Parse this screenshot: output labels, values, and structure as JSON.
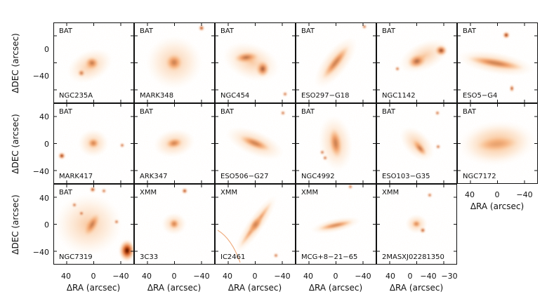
{
  "figure": {
    "ylabel": "ΔDEC (arcsec)",
    "xlabel": "ΔRA (arcsec)",
    "background": "#ffffff",
    "colormap": [
      "#ffffff",
      "#fde8d2",
      "#f7b27a",
      "#e2641e",
      "#8a2300",
      "#3a0b00"
    ]
  },
  "y_ticks": [
    "40",
    "0",
    "−40"
  ],
  "x_ticks": [
    "40",
    "0",
    "−40"
  ],
  "x_ticks_last": [
    "0",
    "−40",
    "−30"
  ],
  "panels": [
    {
      "instrument": "BAT",
      "name": "NGC235A"
    },
    {
      "instrument": "BAT",
      "name": "MARK348"
    },
    {
      "instrument": "BAT",
      "name": "NGC454"
    },
    {
      "instrument": "BAT",
      "name": "ESO297−G18"
    },
    {
      "instrument": "BAT",
      "name": "NGC1142"
    },
    {
      "instrument": "BAT",
      "name": "ESO5−G4"
    },
    {
      "instrument": "BAT",
      "name": "MARK417"
    },
    {
      "instrument": "BAT",
      "name": "ARK347"
    },
    {
      "instrument": "BAT",
      "name": "ESO506−G27"
    },
    {
      "instrument": "BAT",
      "name": "NGC4992"
    },
    {
      "instrument": "BAT",
      "name": "ESO103−G35"
    },
    {
      "instrument": "BAT",
      "name": "NGC7172"
    },
    {
      "instrument": "BAT",
      "name": "NGC7319"
    },
    {
      "instrument": "XMM",
      "name": "3C33"
    },
    {
      "instrument": "XMM",
      "name": "IC2461"
    },
    {
      "instrument": "XMM",
      "name": "MCG+8−21−65"
    },
    {
      "instrument": "XMM",
      "name": "2MASXJ02281350"
    }
  ]
}
